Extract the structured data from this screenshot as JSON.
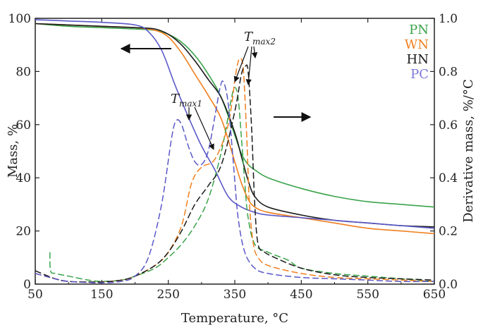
{
  "chart_data": {
    "type": "line",
    "title": "",
    "xlabel": "Temperature, °C",
    "ylabel": "Mass, %",
    "y2label": "Derivative mass, %/°C",
    "xlim": [
      50,
      650
    ],
    "ylim": [
      0,
      100
    ],
    "y2lim": [
      0,
      1.0
    ],
    "xticks": [
      "50",
      "150",
      "250",
      "350",
      "450",
      "550",
      "650"
    ],
    "yticks": [
      "0",
      "20",
      "40",
      "60",
      "80",
      "100"
    ],
    "y2ticks": [
      "0.0",
      "0.2",
      "0.4",
      "0.6",
      "0.8",
      "1.0"
    ],
    "grid": false,
    "legend_position": "top-right",
    "colors": {
      "PN": "#3aa34a",
      "WN": "#f07f1e",
      "HN": "#1a1a1a",
      "PC": "#7a78d6"
    },
    "legend": [
      {
        "label": "PN",
        "color": "#3aa34a"
      },
      {
        "label": "WN",
        "color": "#f07f1e"
      },
      {
        "label": "HN",
        "color": "#1a1a1a"
      },
      {
        "label": "PC",
        "color": "#7a78d6"
      }
    ],
    "annotations": {
      "tmax1_main": "T",
      "tmax1_sub": "max1",
      "tmax2_main": "T",
      "tmax2_sub": "max2"
    },
    "mass_series": [
      {
        "name": "PN",
        "color": "#3aa34a",
        "x": [
          50,
          100,
          150,
          200,
          230,
          250,
          270,
          290,
          310,
          330,
          350,
          360,
          370,
          380,
          400,
          450,
          500,
          550,
          600,
          650
        ],
        "y": [
          98,
          97,
          96.5,
          96,
          95.5,
          94,
          91,
          86,
          79,
          70,
          56,
          49,
          45,
          43,
          40,
          36,
          33,
          31,
          30,
          29
        ]
      },
      {
        "name": "WN",
        "color": "#f07f1e",
        "x": [
          50,
          100,
          150,
          200,
          230,
          250,
          270,
          290,
          310,
          330,
          350,
          360,
          370,
          380,
          400,
          450,
          500,
          550,
          600,
          650
        ],
        "y": [
          98,
          97.5,
          97,
          96.5,
          95.5,
          93,
          87,
          79,
          71,
          62,
          46,
          38,
          32,
          29,
          27,
          25,
          23,
          21,
          20,
          19
        ]
      },
      {
        "name": "HN",
        "color": "#1a1a1a",
        "x": [
          50,
          100,
          150,
          200,
          230,
          250,
          270,
          290,
          310,
          330,
          350,
          360,
          370,
          380,
          400,
          450,
          500,
          550,
          600,
          650
        ],
        "y": [
          98,
          97.5,
          97,
          96.5,
          96,
          94,
          90,
          84,
          77,
          70,
          57,
          48,
          39,
          33,
          29,
          26,
          24,
          23,
          22,
          21.5
        ]
      },
      {
        "name": "PC",
        "color": "#5a58c8",
        "x": [
          50,
          100,
          150,
          200,
          220,
          240,
          260,
          280,
          300,
          320,
          340,
          360,
          380,
          400,
          450,
          500,
          550,
          600,
          650
        ],
        "y": [
          99.5,
          99,
          98.5,
          97.5,
          95,
          88,
          75,
          63,
          52,
          43,
          33,
          29,
          27,
          26,
          25,
          24,
          23,
          22,
          21
        ]
      }
    ],
    "derivative_series": [
      {
        "name": "PN",
        "color": "#3aa34a",
        "x": [
          72,
          73,
          80,
          100,
          130,
          150,
          180,
          200,
          230,
          250,
          270,
          290,
          310,
          330,
          345,
          350,
          355,
          360,
          365,
          370,
          380,
          400,
          430,
          450,
          500,
          550,
          600,
          650
        ],
        "y": [
          0.12,
          0.05,
          0.04,
          0.03,
          0.015,
          0.01,
          0.015,
          0.03,
          0.06,
          0.1,
          0.15,
          0.22,
          0.32,
          0.5,
          0.7,
          0.74,
          0.7,
          0.55,
          0.38,
          0.25,
          0.15,
          0.12,
          0.09,
          0.06,
          0.04,
          0.03,
          0.02,
          0.01
        ]
      },
      {
        "name": "WN",
        "color": "#f07f1e",
        "x": [
          50,
          80,
          100,
          130,
          150,
          180,
          200,
          230,
          250,
          270,
          285,
          300,
          320,
          340,
          352,
          358,
          363,
          368,
          372,
          378,
          385,
          400,
          450,
          500,
          550,
          600,
          650
        ],
        "y": [
          0.04,
          0.02,
          0.01,
          0.008,
          0.008,
          0.015,
          0.03,
          0.07,
          0.12,
          0.22,
          0.38,
          0.44,
          0.47,
          0.6,
          0.8,
          0.85,
          0.8,
          0.55,
          0.3,
          0.15,
          0.1,
          0.07,
          0.04,
          0.025,
          0.02,
          0.015,
          0.01
        ]
      },
      {
        "name": "HN",
        "color": "#1a1a1a",
        "x": [
          50,
          80,
          100,
          130,
          150,
          180,
          200,
          230,
          250,
          270,
          290,
          310,
          330,
          350,
          360,
          366,
          370,
          375,
          380,
          385,
          395,
          410,
          450,
          500,
          550,
          600,
          650
        ],
        "y": [
          0.05,
          0.02,
          0.01,
          0.008,
          0.008,
          0.015,
          0.03,
          0.07,
          0.12,
          0.2,
          0.3,
          0.37,
          0.45,
          0.65,
          0.79,
          0.82,
          0.8,
          0.6,
          0.3,
          0.15,
          0.12,
          0.1,
          0.06,
          0.035,
          0.025,
          0.02,
          0.015
        ]
      },
      {
        "name": "PC",
        "color": "#5a58c8",
        "x": [
          50,
          80,
          100,
          130,
          150,
          180,
          200,
          220,
          240,
          255,
          262,
          270,
          280,
          290,
          300,
          310,
          320,
          328,
          333,
          340,
          348,
          355,
          365,
          380,
          400,
          450,
          500,
          550,
          600,
          650
        ],
        "y": [
          0.04,
          0.02,
          0.01,
          0.006,
          0.005,
          0.01,
          0.03,
          0.1,
          0.3,
          0.55,
          0.615,
          0.6,
          0.52,
          0.46,
          0.45,
          0.5,
          0.63,
          0.74,
          0.76,
          0.68,
          0.45,
          0.25,
          0.12,
          0.06,
          0.04,
          0.025,
          0.02,
          0.015,
          0.01,
          0.01
        ]
      }
    ]
  }
}
